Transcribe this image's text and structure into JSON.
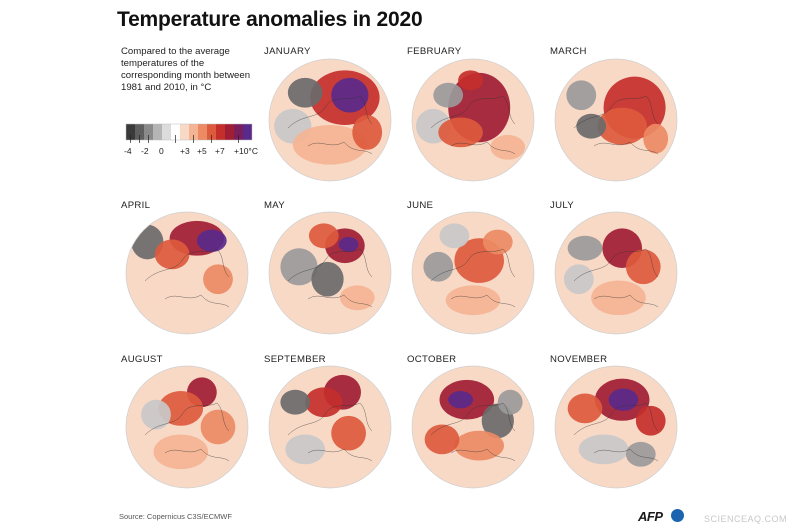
{
  "title": "Temperature anomalies in 2020",
  "legend": {
    "description": "Compared to the average temperatures of the corresponding month between 1981 and 2010, in °C",
    "labels": [
      "-4",
      "-2",
      "0",
      "+3",
      "+5",
      "+7",
      "+10°C"
    ],
    "colors": [
      "#3a3a3a",
      "#5e5e5e",
      "#8a8a8a",
      "#b5b5b5",
      "#dcdcdc",
      "#ffffff",
      "#f8d9c6",
      "#f4b493",
      "#ec8a64",
      "#dd5a3d",
      "#c42f2b",
      "#a11d33",
      "#7a1f5c",
      "#5a2a8a"
    ]
  },
  "months": [
    {
      "name": "JANUARY"
    },
    {
      "name": "FEBRUARY"
    },
    {
      "name": "MARCH"
    },
    {
      "name": "APRIL"
    },
    {
      "name": "MAY"
    },
    {
      "name": "JUNE"
    },
    {
      "name": "JULY"
    },
    {
      "name": "AUGUST"
    },
    {
      "name": "SEPTEMBER"
    },
    {
      "name": "OCTOBER"
    },
    {
      "name": "NOVEMBER"
    }
  ],
  "source": "Source: Copernicus C3S/ECMWF",
  "logo": "AFP",
  "watermark": "SCIENCEAQ.COM"
}
